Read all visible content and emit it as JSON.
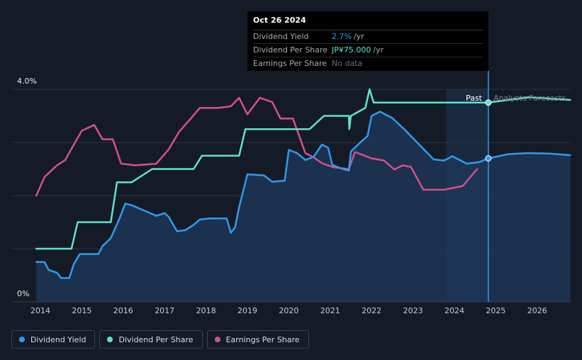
{
  "tooltip": {
    "date": "Oct 26 2024",
    "rows": {
      "dividend_yield": {
        "label": "Dividend Yield",
        "value": "2.7%",
        "unit": "/yr"
      },
      "dividend_per_share": {
        "label": "Dividend Per Share",
        "value": "JP¥75.000",
        "unit": "/yr"
      },
      "earnings_per_share": {
        "label": "Earnings Per Share",
        "value": "No data"
      }
    }
  },
  "labels": {
    "past": "Past",
    "forecast": "Analysts Forecasts"
  },
  "legend": [
    {
      "label": "Dividend Yield",
      "color": "#2d9cf0"
    },
    {
      "label": "Dividend Per Share",
      "color": "#5fe3cd"
    },
    {
      "label": "Earnings Per Share",
      "color": "#d6508a"
    }
  ],
  "colors": {
    "yield": "#2d9cf0",
    "dps": "#5fe3cd",
    "eps": "#d6508a",
    "yield_fill": "#1d3a5c",
    "background": "#151b26",
    "grid": "#2a3140"
  },
  "chart_data": {
    "type": "line",
    "title": "",
    "xlabel": "",
    "ylabel": "",
    "xlim": [
      2013.9,
      2026.8
    ],
    "ylim": [
      0,
      4.0
    ],
    "y_ticks": [
      "0%",
      "4.0%"
    ],
    "x_ticks": [
      "2014",
      "2015",
      "2016",
      "2017",
      "2018",
      "2019",
      "2020",
      "2021",
      "2022",
      "2023",
      "2024",
      "2025",
      "2026"
    ],
    "forecast_start": 2023.8,
    "past_end": 2024.82,
    "series": [
      {
        "name": "Dividend Yield",
        "unit": "%",
        "filled": true,
        "points": [
          [
            2013.9,
            0.75
          ],
          [
            2014.1,
            0.75
          ],
          [
            2014.2,
            0.6
          ],
          [
            2014.4,
            0.55
          ],
          [
            2014.5,
            0.45
          ],
          [
            2014.7,
            0.45
          ],
          [
            2014.8,
            0.7
          ],
          [
            2014.95,
            0.9
          ],
          [
            2015.1,
            0.9
          ],
          [
            2015.4,
            0.9
          ],
          [
            2015.5,
            1.05
          ],
          [
            2015.7,
            1.2
          ],
          [
            2015.9,
            1.55
          ],
          [
            2016.05,
            1.85
          ],
          [
            2016.2,
            1.82
          ],
          [
            2016.5,
            1.72
          ],
          [
            2016.8,
            1.62
          ],
          [
            2017.0,
            1.67
          ],
          [
            2017.1,
            1.6
          ],
          [
            2017.3,
            1.33
          ],
          [
            2017.5,
            1.35
          ],
          [
            2017.7,
            1.45
          ],
          [
            2017.85,
            1.55
          ],
          [
            2018.1,
            1.57
          ],
          [
            2018.5,
            1.57
          ],
          [
            2018.6,
            1.3
          ],
          [
            2018.7,
            1.4
          ],
          [
            2018.8,
            1.78
          ],
          [
            2019.0,
            2.4
          ],
          [
            2019.4,
            2.38
          ],
          [
            2019.6,
            2.26
          ],
          [
            2019.9,
            2.28
          ],
          [
            2020.0,
            2.86
          ],
          [
            2020.2,
            2.8
          ],
          [
            2020.4,
            2.67
          ],
          [
            2020.6,
            2.73
          ],
          [
            2020.8,
            2.96
          ],
          [
            2020.95,
            2.9
          ],
          [
            2021.05,
            2.58
          ],
          [
            2021.3,
            2.5
          ],
          [
            2021.45,
            2.47
          ],
          [
            2021.5,
            2.83
          ],
          [
            2021.7,
            2.98
          ],
          [
            2021.9,
            3.12
          ],
          [
            2022.0,
            3.5
          ],
          [
            2022.2,
            3.58
          ],
          [
            2022.5,
            3.46
          ],
          [
            2022.8,
            3.24
          ],
          [
            2023.1,
            3.0
          ],
          [
            2023.5,
            2.68
          ],
          [
            2023.75,
            2.66
          ],
          [
            2023.95,
            2.74
          ],
          [
            2024.3,
            2.6
          ],
          [
            2024.6,
            2.63
          ],
          [
            2024.82,
            2.7
          ],
          [
            2025.3,
            2.78
          ],
          [
            2025.8,
            2.8
          ],
          [
            2026.3,
            2.79
          ],
          [
            2026.8,
            2.76
          ]
        ]
      },
      {
        "name": "Dividend Per Share",
        "unit": "normalized",
        "filled": false,
        "points": [
          [
            2013.9,
            1.0
          ],
          [
            2014.75,
            1.0
          ],
          [
            2014.9,
            1.5
          ],
          [
            2015.7,
            1.5
          ],
          [
            2015.85,
            2.25
          ],
          [
            2016.2,
            2.25
          ],
          [
            2016.7,
            2.5
          ],
          [
            2017.7,
            2.5
          ],
          [
            2017.9,
            2.75
          ],
          [
            2018.8,
            2.75
          ],
          [
            2018.95,
            3.25
          ],
          [
            2020.5,
            3.25
          ],
          [
            2020.85,
            3.5
          ],
          [
            2021.45,
            3.5
          ],
          [
            2021.46,
            3.25
          ],
          [
            2021.5,
            3.5
          ],
          [
            2021.85,
            3.65
          ],
          [
            2021.95,
            4.0
          ],
          [
            2022.05,
            3.75
          ],
          [
            2024.82,
            3.75
          ],
          [
            2025.3,
            3.8
          ],
          [
            2025.8,
            3.85
          ],
          [
            2026.8,
            3.8
          ]
        ]
      },
      {
        "name": "Earnings Per Share",
        "unit": "normalized",
        "filled": false,
        "points": [
          [
            2013.9,
            2.0
          ],
          [
            2014.1,
            2.35
          ],
          [
            2014.4,
            2.57
          ],
          [
            2014.6,
            2.67
          ],
          [
            2014.8,
            2.95
          ],
          [
            2015.0,
            3.22
          ],
          [
            2015.3,
            3.33
          ],
          [
            2015.5,
            3.06
          ],
          [
            2015.75,
            3.06
          ],
          [
            2015.95,
            2.6
          ],
          [
            2016.3,
            2.57
          ],
          [
            2016.8,
            2.6
          ],
          [
            2017.1,
            2.87
          ],
          [
            2017.35,
            3.2
          ],
          [
            2017.6,
            3.42
          ],
          [
            2017.85,
            3.65
          ],
          [
            2018.3,
            3.65
          ],
          [
            2018.6,
            3.68
          ],
          [
            2018.8,
            3.84
          ],
          [
            2019.0,
            3.53
          ],
          [
            2019.3,
            3.84
          ],
          [
            2019.6,
            3.76
          ],
          [
            2019.8,
            3.45
          ],
          [
            2020.1,
            3.45
          ],
          [
            2020.4,
            2.8
          ],
          [
            2020.6,
            2.72
          ],
          [
            2020.8,
            2.61
          ],
          [
            2021.1,
            2.53
          ],
          [
            2021.45,
            2.5
          ],
          [
            2021.6,
            2.82
          ],
          [
            2022.0,
            2.7
          ],
          [
            2022.3,
            2.66
          ],
          [
            2022.55,
            2.49
          ],
          [
            2022.75,
            2.57
          ],
          [
            2022.95,
            2.54
          ],
          [
            2023.25,
            2.11
          ],
          [
            2023.75,
            2.11
          ],
          [
            2024.2,
            2.18
          ],
          [
            2024.55,
            2.5
          ]
        ]
      }
    ]
  }
}
